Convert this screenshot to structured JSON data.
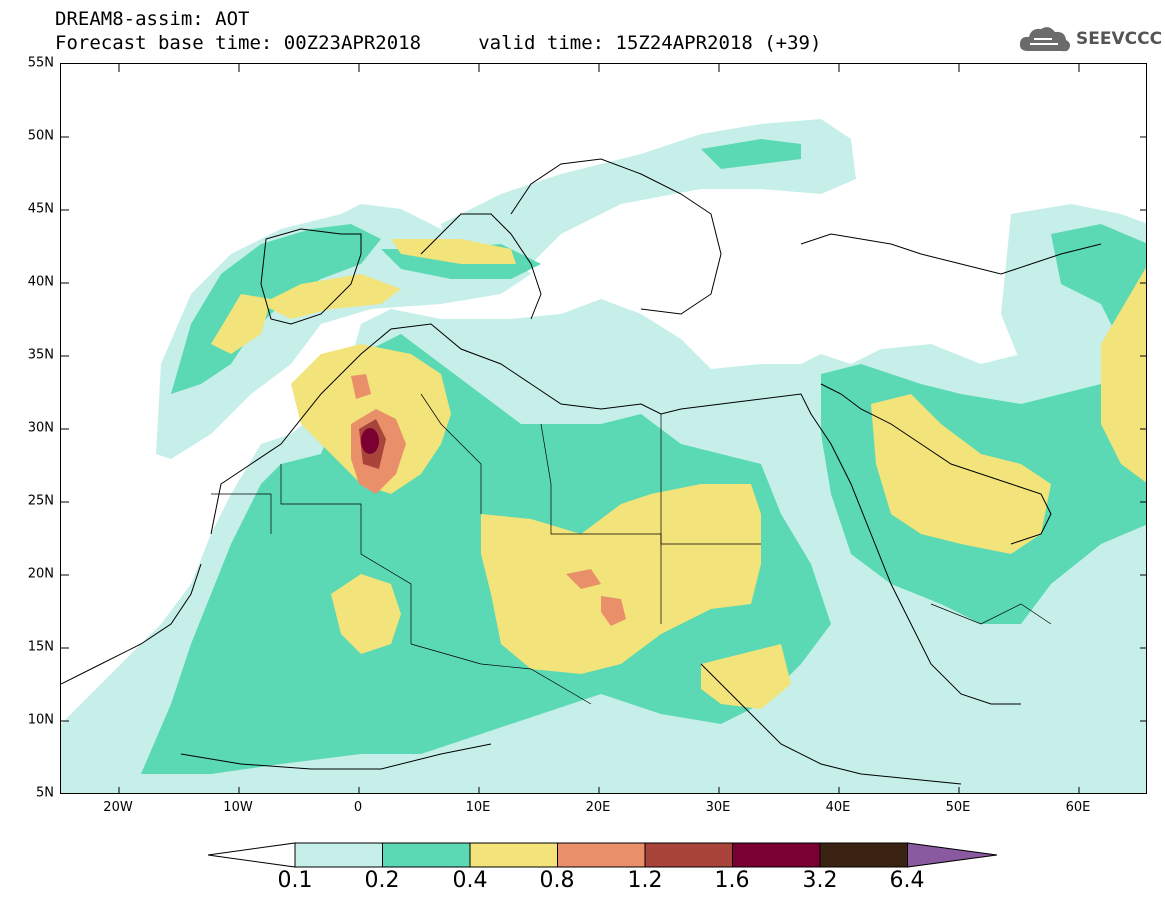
{
  "header": {
    "title_line1": "DREAM8-assim: AOT",
    "title_line2": "Forecast base time: 00Z23APR2018     valid time: 15Z24APR2018 (+39)"
  },
  "logo": {
    "text": "SEEVCCC",
    "icon": "cloud-icon"
  },
  "map": {
    "lat_labels": [
      "55N",
      "50N",
      "45N",
      "40N",
      "35N",
      "30N",
      "25N",
      "20N",
      "15N",
      "10N",
      "5N"
    ],
    "lon_labels": [
      "20W",
      "10W",
      "0",
      "10E",
      "20E",
      "30E",
      "40E",
      "50E",
      "60E"
    ]
  },
  "colorbar": {
    "labels": [
      "0.1",
      "0.2",
      "0.4",
      "0.8",
      "1.2",
      "1.6",
      "3.2",
      "6.4"
    ],
    "colors": [
      "#ffffff",
      "#c6efe9",
      "#5ad9b4",
      "#f2e37a",
      "#e9906a",
      "#a9443a",
      "#7a0032",
      "#3b2314",
      "#8a5aa0"
    ]
  },
  "colors": {
    "aot_0_1": "#c6efe9",
    "aot_0_2": "#5ad9b4",
    "aot_0_4": "#f2e37a",
    "aot_0_8": "#e9906a",
    "aot_1_2": "#a9443a",
    "aot_1_6": "#7a0032"
  }
}
